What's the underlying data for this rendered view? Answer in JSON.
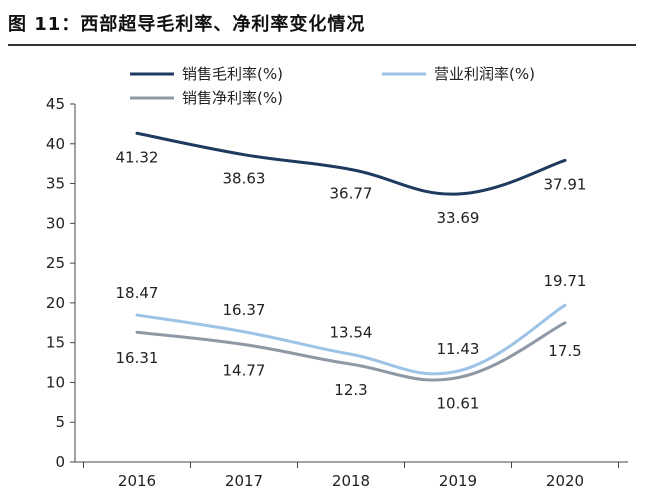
{
  "figure_title": "图 11：西部超导毛利率、净利率变化情况",
  "chart_data": {
    "type": "line",
    "title": "",
    "xlabel": "",
    "ylabel": "",
    "categories": [
      "2016",
      "2017",
      "2018",
      "2019",
      "2020"
    ],
    "ylim": [
      0,
      45
    ],
    "yticks": [
      "0",
      "5",
      "10",
      "15",
      "20",
      "25",
      "30",
      "35",
      "40",
      "45"
    ],
    "grid": false,
    "legend_position": "top",
    "series": [
      {
        "name": "销售毛利率(%)",
        "values": [
          41.32,
          38.63,
          36.77,
          33.69,
          37.91
        ],
        "labels": [
          "41.32",
          "38.63",
          "36.77",
          "33.69",
          "37.91"
        ],
        "color": "#1f3a5f"
      },
      {
        "name": "营业利润率(%)",
        "values": [
          18.47,
          16.37,
          13.54,
          11.43,
          19.71
        ],
        "labels": [
          "18.47",
          "16.37",
          "13.54",
          "11.43",
          "19.71"
        ],
        "color": "#9dc3e6"
      },
      {
        "name": "销售净利率(%)",
        "values": [
          16.31,
          14.77,
          12.3,
          10.61,
          17.5
        ],
        "labels": [
          "16.31",
          "14.77",
          "12.3",
          "10.61",
          "17.5"
        ],
        "color": "#8f99a6"
      }
    ]
  }
}
